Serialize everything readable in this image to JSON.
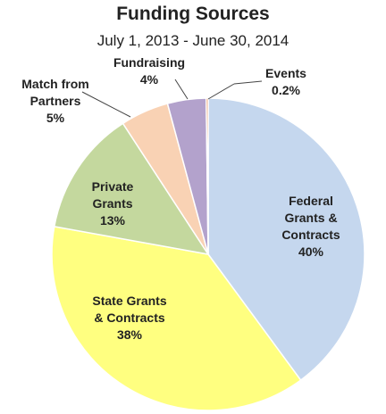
{
  "chart_data": {
    "type": "pie",
    "title": "Funding Sources",
    "subtitle": "July 1, 2013 - June 30, 2014",
    "slices": [
      {
        "name": "Federal Grants & Contracts",
        "label_lines": [
          "Federal",
          "Grants &",
          "Contracts"
        ],
        "value": 40,
        "value_label": "40%",
        "color": "#c5d7ee"
      },
      {
        "name": "State Grants & Contracts",
        "label_lines": [
          "State Grants",
          "& Contracts"
        ],
        "value": 38,
        "value_label": "38%",
        "color": "#ffff80"
      },
      {
        "name": "Private Grants",
        "label_lines": [
          "Private",
          "Grants"
        ],
        "value": 13,
        "value_label": "13%",
        "color": "#c4d89e"
      },
      {
        "name": "Match from Partners",
        "label_lines": [
          "Match from",
          "Partners"
        ],
        "value": 5,
        "value_label": "5%",
        "color": "#f9d2b4"
      },
      {
        "name": "Fundraising",
        "label_lines": [
          "Fundraising"
        ],
        "value": 4,
        "value_label": "4%",
        "color": "#b3a2cc"
      },
      {
        "name": "Events",
        "label_lines": [
          "Events"
        ],
        "value": 0.2,
        "value_label": "0.2%",
        "color": "#e07a3a"
      }
    ],
    "start_angle": "top",
    "direction": "clockwise",
    "legend": "none"
  }
}
